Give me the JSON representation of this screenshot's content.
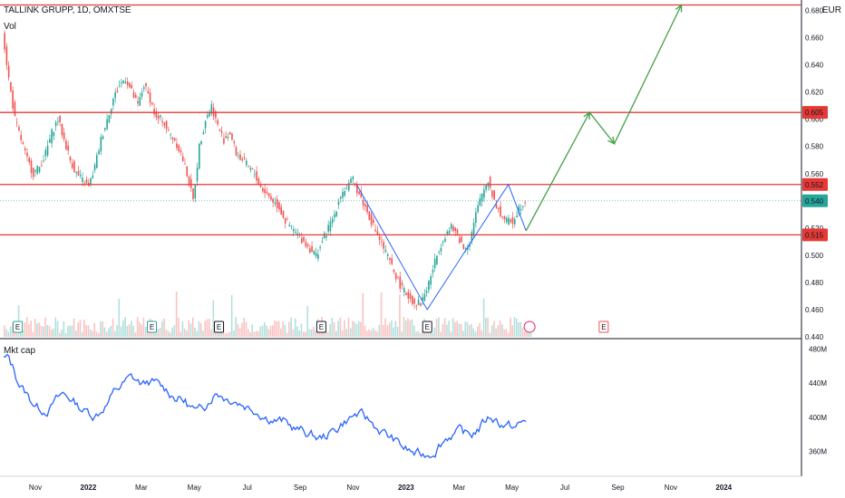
{
  "header": {
    "symbol_line": "TALLINK GRUPP, 1D, OMXTSE",
    "currency": "EUR",
    "volume_label": "Vol",
    "mktcap_label": "Mkt cap"
  },
  "colors": {
    "resistance": "#e53935",
    "zigzag": "#2962ff",
    "projection": "#43a047",
    "up": "#26a69a",
    "down": "#ef5350",
    "mktcap_line": "#2962ff",
    "current_price_bg": "#26a69a"
  },
  "chart_data": [
    {
      "type": "line",
      "title": "TALLINK GRUPP, 1D, OMXTSE",
      "ylabel": "EUR",
      "x_tick_labels": [
        "Nov",
        "2022",
        "Mar",
        "May",
        "Jul",
        "Sep",
        "Nov",
        "2023",
        "Mar",
        "May",
        "Jul",
        "Sep",
        "Nov",
        "2024"
      ],
      "y_tick_labels": [
        "0.680",
        "0.660",
        "0.640",
        "0.620",
        "0.600",
        "0.580",
        "0.560",
        "0.540",
        "0.520",
        "0.500",
        "0.480",
        "0.460",
        "0.440"
      ],
      "ylim": [
        0.44,
        0.685
      ],
      "price_labels": [
        {
          "value": "0.605",
          "kind": "resistance"
        },
        {
          "value": "0.552",
          "kind": "resistance"
        },
        {
          "value": "0.540",
          "kind": "current"
        },
        {
          "value": "0.515",
          "kind": "resistance"
        }
      ],
      "horizontal_levels": [
        0.684,
        0.605,
        0.552,
        0.515
      ],
      "earnings_markers": [
        {
          "label": "E",
          "month_index": 0.4
        },
        {
          "label": "E",
          "month_index": 4.2
        },
        {
          "label": "E",
          "month_index": 6.1
        },
        {
          "label": "E",
          "month_index": 9.0
        },
        {
          "label": "E",
          "month_index": 12.0
        },
        {
          "label": "E",
          "month_index": 17.0
        }
      ],
      "series": [
        {
          "approx_close": [
            0.665,
            0.63,
            0.6,
            0.585,
            0.57,
            0.56,
            0.565,
            0.575,
            0.59,
            0.6,
            0.585,
            0.57,
            0.56,
            0.555,
            0.55,
            0.565,
            0.585,
            0.6,
            0.615,
            0.625,
            0.63,
            0.62,
            0.61,
            0.625,
            0.615,
            0.6,
            0.6,
            0.59,
            0.585,
            0.575,
            0.56,
            0.54,
            0.58,
            0.6,
            0.61,
            0.595,
            0.585,
            0.59,
            0.575,
            0.57,
            0.565,
            0.56,
            0.55,
            0.545,
            0.54,
            0.535,
            0.525,
            0.52,
            0.515,
            0.51,
            0.505,
            0.5,
            0.51,
            0.52,
            0.53,
            0.545,
            0.55,
            0.555,
            0.545,
            0.535,
            0.525,
            0.515,
            0.505,
            0.495,
            0.485,
            0.475,
            0.47,
            0.465,
            0.465,
            0.475,
            0.49,
            0.505,
            0.515,
            0.52,
            0.515,
            0.505,
            0.51,
            0.53,
            0.545,
            0.555,
            0.54,
            0.53,
            0.525,
            0.525,
            0.535,
            0.54
          ]
        }
      ],
      "zigzag_months": [
        {
          "m": 10.0,
          "v": 0.552
        },
        {
          "m": 12.0,
          "v": 0.46
        },
        {
          "m": 14.3,
          "v": 0.552
        },
        {
          "m": 14.8,
          "v": 0.518
        }
      ],
      "projection_months": [
        {
          "m": 14.8,
          "v": 0.518
        },
        {
          "m": 16.6,
          "v": 0.605
        },
        {
          "m": 17.3,
          "v": 0.582
        },
        {
          "m": 19.2,
          "v": 0.684
        }
      ]
    },
    {
      "type": "line",
      "title": "Mkt cap",
      "y_tick_labels": [
        "480M",
        "440M",
        "400M",
        "360M"
      ],
      "ylim": [
        335,
        490
      ]
    }
  ]
}
